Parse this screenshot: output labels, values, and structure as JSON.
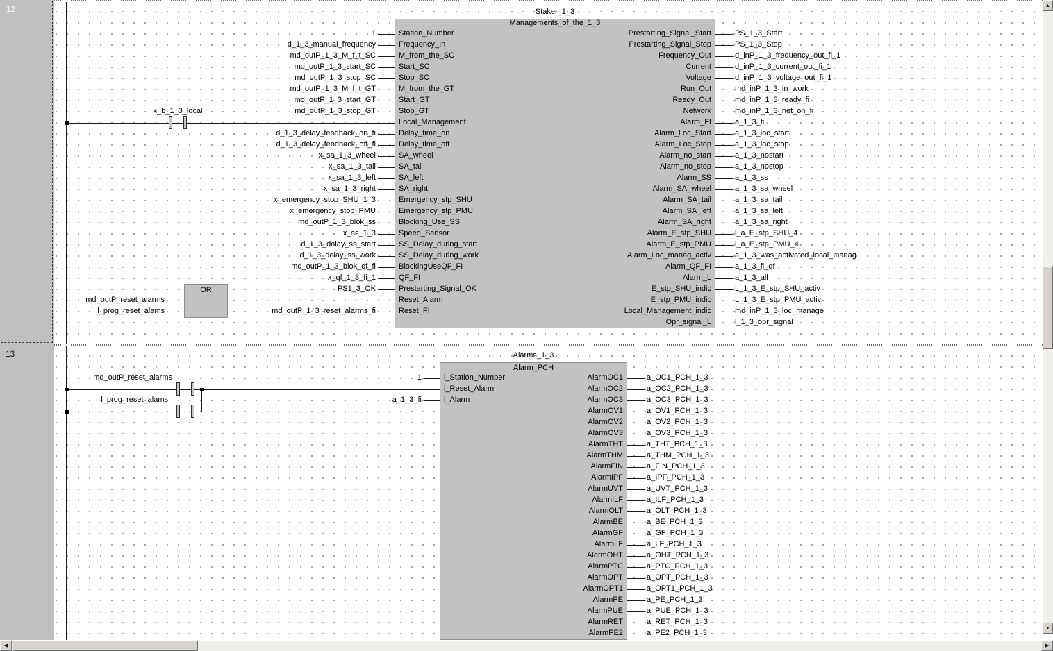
{
  "editor_kind": "fbd-ladder-editor",
  "colors": {
    "block_fill": "#c2c2c2",
    "margin_fill": "#c0c0c0",
    "canvas": "#ffffff",
    "wire": "#1c1c1c",
    "grid_dot": "#8f8f8f"
  },
  "networks": [
    {
      "number": "12",
      "selected": true,
      "contact": {
        "label": "x_b_1_3_local"
      },
      "or_gate": {
        "label": "OR",
        "input_a": "md_outP_reset_alarms",
        "input_b": "l_prog_reset_alams"
      },
      "block": {
        "instance": "Staker_1_3",
        "type": "Managements_of_the_1_3",
        "inputs": [
          {
            "var": "1",
            "pin": "Station_Number"
          },
          {
            "var": "d_1_3_manual_frequency",
            "pin": "Frequency_In"
          },
          {
            "var": "md_outP_1_3_M_f_t_SC",
            "pin": "M_from_the_SC"
          },
          {
            "var": "md_outP_1_3_start_SC",
            "pin": "Start_SC"
          },
          {
            "var": "md_outP_1_3_stop_SC",
            "pin": "Stop_SC"
          },
          {
            "var": "md_outP_1_3_M_f_t_GT",
            "pin": "M_from_the_GT"
          },
          {
            "var": "md_outP_1_3_start_GT",
            "pin": "Start_GT"
          },
          {
            "var": "md_outP_1_3_stop_GT",
            "pin": "Stop_GT"
          },
          {
            "var": "",
            "pin": "Local_Management"
          },
          {
            "var": "d_1_3_delay_feedback_on_fi",
            "pin": "Delay_time_on"
          },
          {
            "var": "d_1_3_delay_feedback_off_fi",
            "pin": "Delay_time_off"
          },
          {
            "var": "x_sa_1_3_wheel",
            "pin": "SA_wheel"
          },
          {
            "var": "x_sa_1_3_tail",
            "pin": "SA_tail"
          },
          {
            "var": "x_sa_1_3_left",
            "pin": "SA_left"
          },
          {
            "var": "x_sa_1_3_right",
            "pin": "SA_right"
          },
          {
            "var": "x_emergency_stop_SHU_1_3",
            "pin": "Emergency_stp_SHU"
          },
          {
            "var": "x_emergency_stop_PMU",
            "pin": "Emergency_stp_PMU"
          },
          {
            "var": "md_outP_1_3_blok_ss",
            "pin": "Blocking_Use_SS"
          },
          {
            "var": "x_ss_1_3",
            "pin": "Speed_Sensor"
          },
          {
            "var": "d_1_3_delay_ss_start",
            "pin": "SS_Delay_during_start"
          },
          {
            "var": "d_1_3_delay_ss_work",
            "pin": "SS_Delay_during_work"
          },
          {
            "var": "md_outP_1_3_blok_qf_fi",
            "pin": "BlockingUseQF_FI"
          },
          {
            "var": "x_qf_1_3_fi_1",
            "pin": "QF_FI"
          },
          {
            "var": "PS1_3_OK",
            "pin": "Prestarting_Signal_OK"
          },
          {
            "var": "",
            "pin": "Reset_Alarm"
          },
          {
            "var": "md_outP_1_3_reset_alarms_fi",
            "pin": "Reset_FI"
          }
        ],
        "outputs": [
          {
            "pin": "Prestarting_Signal_Start",
            "var": "PS_1_3_Start"
          },
          {
            "pin": "Prestarting_Signal_Stop",
            "var": "PS_1_3_Stop"
          },
          {
            "pin": "Frequency_Out",
            "var": "d_inP_1_3_frequency_out_fi_1"
          },
          {
            "pin": "Current",
            "var": "d_inP_1_3_current_out_fi_1"
          },
          {
            "pin": "Voltage",
            "var": "d_inP_1_3_voltage_out_fi_1"
          },
          {
            "pin": "Run_Out",
            "var": "md_inP_1_3_in_work"
          },
          {
            "pin": "Ready_Out",
            "var": "md_inP_1_3_ready_fi"
          },
          {
            "pin": "Network",
            "var": "md_inP_1_3_net_on_fi"
          },
          {
            "pin": "Alarm_FI",
            "var": "a_1_3_fi"
          },
          {
            "pin": "Alarm_Loc_Start",
            "var": "a_1_3_loc_start"
          },
          {
            "pin": "Alarm_Loc_Stop",
            "var": "a_1_3_loc_stop"
          },
          {
            "pin": "Alarm_no_start",
            "var": "a_1_3_nostart"
          },
          {
            "pin": "Alarm_no_stop",
            "var": "a_1_3_nostop"
          },
          {
            "pin": "Alarm_SS",
            "var": "a_1_3_ss"
          },
          {
            "pin": "Alarm_SA_wheel",
            "var": "a_1_3_sa_wheel"
          },
          {
            "pin": "Alarm_SA_tail",
            "var": "a_1_3_sa_tail"
          },
          {
            "pin": "Alarm_SA_left",
            "var": "a_1_3_sa_left"
          },
          {
            "pin": "Alarm_SA_right",
            "var": "a_1_3_sa_right"
          },
          {
            "pin": "Alarm_E_stp_SHU",
            "var": "l_a_E_stp_SHU_4"
          },
          {
            "pin": "Alarm_E_stp_PMU",
            "var": "l_a_E_stp_PMU_4"
          },
          {
            "pin": "Alarm_Loc_manag_activ",
            "var": "a_1_3_was_activated_local_manag"
          },
          {
            "pin": "Alarm_QF_FI",
            "var": "a_1_3_fi_qf"
          },
          {
            "pin": "Alarm_L",
            "var": "a_1_3_all"
          },
          {
            "pin": "E_stp_SHU_indic",
            "var": "L_1_3_E_stp_SHU_activ"
          },
          {
            "pin": "E_stp_PMU_indic",
            "var": "L_1_3_E_stp_PMU_activ"
          },
          {
            "pin": "Local_Management_indic",
            "var": "md_inP_1_3_loc_manage"
          },
          {
            "pin": "Opr_signal_L",
            "var": "l_1_3_opr_signal"
          }
        ]
      }
    },
    {
      "number": "13",
      "selected": false,
      "contacts": [
        {
          "label": "md_outP_reset_alarms"
        },
        {
          "label": "l_prog_reset_alams"
        }
      ],
      "block": {
        "instance": "Alarms_1_3",
        "type": "Alarm_PCH",
        "inputs": [
          {
            "var": "1",
            "pin": "i_Station_Number"
          },
          {
            "var": "",
            "pin": "i_Reset_Alarm"
          },
          {
            "var": "a_1_3_fi",
            "pin": "i_Alarm"
          }
        ],
        "outputs": [
          {
            "pin": "AlarmOC1",
            "var": "a_OC1_PCH_1_3"
          },
          {
            "pin": "AlarmOC2",
            "var": "a_OC2_PCH_1_3"
          },
          {
            "pin": "AlarmOC3",
            "var": "a_OC3_PCH_1_3"
          },
          {
            "pin": "AlarmOV1",
            "var": "a_OV1_PCH_1_3"
          },
          {
            "pin": "AlarmOV2",
            "var": "a_OV2_PCH_1_3"
          },
          {
            "pin": "AlarmOV3",
            "var": "a_OV3_PCH_1_3"
          },
          {
            "pin": "AlarmTHT",
            "var": "a_THT_PCH_1_3"
          },
          {
            "pin": "AlarmTHM",
            "var": "a_THM_PCH_1_3"
          },
          {
            "pin": "AlarmFIN",
            "var": "a_FIN_PCH_1_3"
          },
          {
            "pin": "AlarmIPF",
            "var": "a_IPF_PCH_1_3"
          },
          {
            "pin": "AlarmUVT",
            "var": "a_UVT_PCH_1_3"
          },
          {
            "pin": "AlarmILF",
            "var": "a_ILF_PCH_1_3"
          },
          {
            "pin": "AlarmOLT",
            "var": "a_OLT_PCH_1_3"
          },
          {
            "pin": "AlarmBE",
            "var": "a_BE_PCH_1_3"
          },
          {
            "pin": "AlarmGF",
            "var": "a_GF_PCH_1_3"
          },
          {
            "pin": "AlarmLF",
            "var": "a_LF_PCH_1_3"
          },
          {
            "pin": "AlarmOHT",
            "var": "a_OHT_PCH_1_3"
          },
          {
            "pin": "AlarmPTC",
            "var": "a_PTC_PCH_1_3"
          },
          {
            "pin": "AlarmOPT",
            "var": "a_OPT_PCH_1_3"
          },
          {
            "pin": "AlarmOPT1",
            "var": "a_OPT1_PCH_1_3"
          },
          {
            "pin": "AlarmPE",
            "var": "a_PE_PCH_1_3"
          },
          {
            "pin": "AlarmPUE",
            "var": "a_PUE_PCH_1_3"
          },
          {
            "pin": "AlarmRET",
            "var": "a_RET_PCH_1_3"
          },
          {
            "pin": "AlarmPE2",
            "var": "a_PE2_PCH_1_3"
          }
        ]
      }
    }
  ],
  "scrollbars": {
    "vertical": {
      "up_icon": "▲",
      "down_icon": "▼"
    },
    "horizontal": {
      "left_icon": "◀",
      "right_icon": "▶"
    }
  }
}
